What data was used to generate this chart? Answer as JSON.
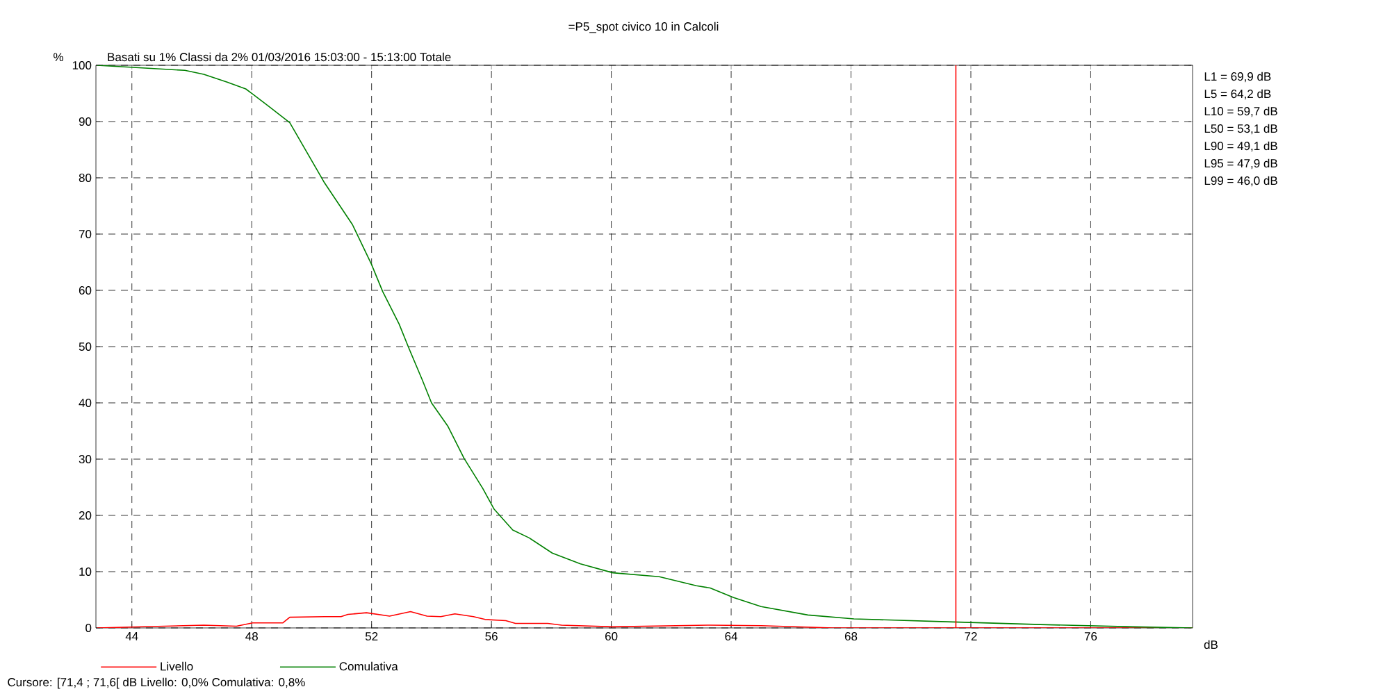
{
  "chart_data": {
    "type": "line",
    "title": "=P5_spot civico 10 in Calcoli",
    "subtitle": "Basati su 1%   Classi da 2%  01/03/2016 15:03:00 - 15:13:00  Totale",
    "xlabel": "dB",
    "ylabel": "%",
    "x": [
      42.84,
      45.77,
      46.4,
      47.18,
      47.8,
      48.03,
      48.57,
      49.27,
      50.43,
      51.36,
      51.99,
      52.37,
      52.92,
      53.23,
      53.69,
      54.0,
      54.54,
      55.09,
      55.71,
      56.09,
      56.71,
      57.26,
      58.03,
      58.97,
      60.05,
      61.6,
      62.84,
      63.3,
      64.08,
      65.0,
      66.56,
      68.1,
      71.2,
      74.31,
      77.4,
      79.4
    ],
    "series": [
      {
        "name": "Livello",
        "color": "#ff0000",
        "x": [
          42.84,
          46.4,
          47.49,
          48.03,
          49.04,
          49.27,
          50.43,
          50.98,
          51.21,
          51.83,
          52.6,
          53.3,
          53.85,
          54.31,
          54.78,
          55.4,
          55.79,
          56.48,
          56.8,
          57.88,
          58.34,
          60.05,
          63.3,
          65.0,
          67.4,
          79.4
        ],
        "values": [
          0.0,
          0.5,
          0.3,
          0.9,
          0.9,
          1.9,
          2.0,
          2.0,
          2.4,
          2.7,
          2.1,
          2.9,
          2.1,
          2.0,
          2.5,
          2.0,
          1.5,
          1.3,
          0.8,
          0.8,
          0.5,
          0.2,
          0.5,
          0.4,
          0.0,
          0.0
        ]
      },
      {
        "name": "Comulativa",
        "color": "#008000",
        "values": [
          100,
          99.1,
          98.4,
          97.0,
          95.8,
          94.9,
          92.7,
          89.8,
          79.1,
          71.7,
          64.7,
          59.8,
          54.0,
          49.9,
          44.1,
          40.0,
          35.9,
          30.1,
          24.8,
          21.1,
          17.4,
          16.0,
          13.3,
          11.4,
          9.8,
          9.1,
          7.5,
          7.1,
          5.4,
          3.8,
          2.3,
          1.6,
          1.1,
          0.6,
          0.2,
          0.0
        ]
      }
    ],
    "xlim": [
      42.8,
      79.4
    ],
    "ylim": [
      0,
      100
    ],
    "xticks": [
      44,
      48,
      52,
      56,
      60,
      64,
      68,
      72,
      76
    ],
    "yticks": [
      0,
      10,
      20,
      30,
      40,
      50,
      60,
      70,
      80,
      90,
      100
    ],
    "ref_lines": [
      {
        "axis": "x",
        "value": 71.5,
        "color": "#ff0000"
      }
    ],
    "annotations": [
      "L1 = 69,9 dB",
      "L5 = 64,2 dB",
      "L10 = 59,7 dB",
      "L50 = 53,1 dB",
      "L90 = 49,1 dB",
      "L95 = 47,9 dB",
      "L99 = 46,0 dB",
      "Cursore: [71,4 ; 71,6[ dB   Livello: 0,0%   Comulativa: 0,8%"
    ],
    "grid": true,
    "legend": "bottom",
    "marker": "none",
    "line_style": "solid"
  }
}
